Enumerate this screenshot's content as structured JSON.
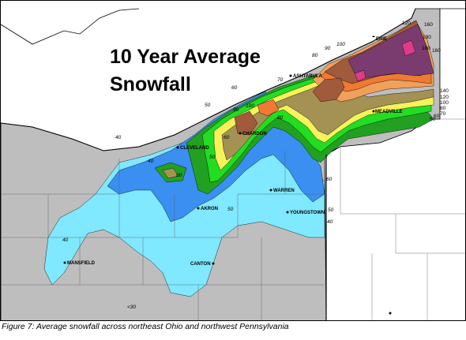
{
  "title": {
    "line1": "10 Year Average",
    "line2": "Snowfall"
  },
  "caption": "Figure 7: Average snowfall across northeast Ohio and northwest Pennsylvania",
  "cities": {
    "erie": "ERIE",
    "ashtabula": "ASHTABULA",
    "meadville": "MEADVILLE",
    "chardon": "CHARDON",
    "cleveland": "CLEVELAND",
    "warren": "WARREN",
    "youngstown": "YOUNGSTOWN",
    "akron": "AKRON",
    "canton": "CANTON",
    "mansfield": "MANSFIELD"
  },
  "contours": {
    "c120": "120",
    "c160a": "160",
    "c180a": "180",
    "c180b": "180",
    "c160b": "160",
    "c100": "100",
    "c90": "90",
    "c80": "80",
    "c70": "70",
    "c60a": "60",
    "c50": "50",
    "c40": "40",
    "c140": "140",
    "c120b": "120",
    "c100b": "100",
    "c80b": "80",
    "c70b": "70",
    "c60b": "60",
    "c50b": "50",
    "c100c": "100",
    "c90b": "90",
    "c80c": "80",
    "c60c": "60",
    "c50c": "50",
    "c40b": "40",
    "c60d": "60",
    "c50d": "50",
    "c40c": "40",
    "c30": "<30",
    "c60e": "60",
    "c50e": "50",
    "c40d": "40"
  },
  "legend_colors": {
    "below_40": "#bebebe",
    "40_50": "#80e8ff",
    "50_60": "#3a8ff0",
    "60_70": "#22a022",
    "70_80": "#22dd22",
    "80_90": "#f7f25a",
    "90_100": "#a39253",
    "100_120": "#f0a05a",
    "120_140": "#f07a33",
    "140_160": "#a05a3c",
    "160_180": "#7a3c6e",
    "over_180": "#e03a8a"
  }
}
